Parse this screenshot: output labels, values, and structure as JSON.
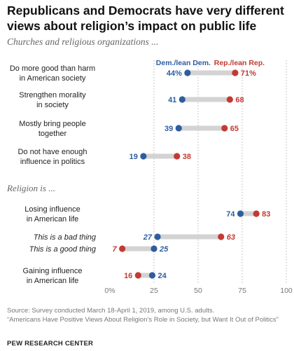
{
  "title": "Republicans and Democrats have very different views about religion’s impact on public life",
  "subtitle": "Churches and religious organizations ...",
  "section_label": "Religion is ...",
  "footer": {
    "source": "Source: Survey conducted March 18-April 1, 2019, among U.S. adults.",
    "report": "“Americans Have Positive Views About Religion’s Role in Society, but Want It Out of Politics”",
    "brand": "PEW RESEARCH CENTER"
  },
  "colors": {
    "dem": "#2e5d9f",
    "rep": "#c33a32",
    "connector": "#d3d3d3",
    "text": "#222222"
  },
  "chart_data": {
    "type": "dot",
    "xlim": [
      0,
      100
    ],
    "x_ticks": [
      "0%",
      "25",
      "50",
      "75",
      "100"
    ],
    "series": [
      {
        "name": "Dem./lean Dem.",
        "values": [
          44,
          41,
          39,
          19,
          74,
          27,
          25,
          24
        ]
      },
      {
        "name": "Rep./lean Rep.",
        "values": [
          71,
          68,
          65,
          38,
          83,
          63,
          7,
          16
        ]
      }
    ],
    "rows": [
      {
        "label": [
          "Do more good than harm",
          "in American society"
        ],
        "dem": 44,
        "rep": 71,
        "dem_label": "44%",
        "rep_label": "71%",
        "italic": false
      },
      {
        "label": [
          "Strengthen morality",
          "in society"
        ],
        "dem": 41,
        "rep": 68,
        "dem_label": "41",
        "rep_label": "68",
        "italic": false
      },
      {
        "label": [
          "Mostly bring people",
          "together"
        ],
        "dem": 39,
        "rep": 65,
        "dem_label": "39",
        "rep_label": "65",
        "italic": false
      },
      {
        "label": [
          "Do not have enough",
          "influence in politics"
        ],
        "dem": 19,
        "rep": 38,
        "dem_label": "19",
        "rep_label": "38",
        "italic": false
      },
      {
        "label": [
          "Losing influence",
          "in American life"
        ],
        "dem": 74,
        "rep": 83,
        "dem_label": "74",
        "rep_label": "83",
        "italic": false
      },
      {
        "label": [
          "This is a bad thing"
        ],
        "dem": 27,
        "rep": 63,
        "dem_label": "27",
        "rep_label": "63",
        "italic": true
      },
      {
        "label": [
          "This is a good thing"
        ],
        "dem": 25,
        "rep": 7,
        "dem_label": "25",
        "rep_label": "7",
        "italic": true
      },
      {
        "label": [
          "Gaining influence",
          "in American life"
        ],
        "dem": 24,
        "rep": 16,
        "dem_label": "24",
        "rep_label": "16",
        "italic": false
      }
    ]
  }
}
